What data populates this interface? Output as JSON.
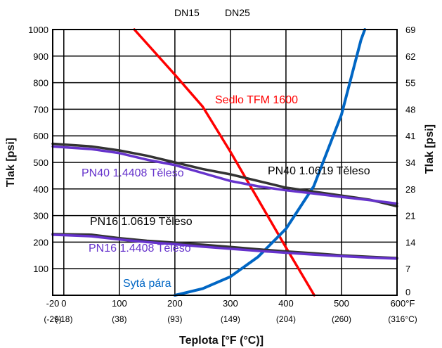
{
  "chart_data": {
    "type": "line",
    "top_labels": [
      "DN15",
      "DN25"
    ],
    "xlabel": "Teplota [°F (°C)]",
    "ylabel_left": "Tlak [psi]",
    "ylabel_right": "Tlak [psi]",
    "xlim": [
      -20,
      600
    ],
    "ylim": [
      0,
      1000
    ],
    "x_ticks": [
      {
        "v": -20,
        "label": "-20",
        "sub": "(-29)"
      },
      {
        "v": 0,
        "label": "0",
        "sub": "(-18)"
      },
      {
        "v": 100,
        "label": "100",
        "sub": "(38)"
      },
      {
        "v": 200,
        "label": "200",
        "sub": "(93)"
      },
      {
        "v": 300,
        "label": "300",
        "sub": "(149)"
      },
      {
        "v": 400,
        "label": "400",
        "sub": "(204)"
      },
      {
        "v": 500,
        "label": "500",
        "sub": "(260)"
      },
      {
        "v": 600,
        "label": "600°F",
        "sub": "(316°C)"
      }
    ],
    "y_ticks_left": [
      {
        "v": 100,
        "label": "100"
      },
      {
        "v": 200,
        "label": "200"
      },
      {
        "v": 300,
        "label": "300"
      },
      {
        "v": 400,
        "label": "400"
      },
      {
        "v": 500,
        "label": "500"
      },
      {
        "v": 600,
        "label": "600"
      },
      {
        "v": 700,
        "label": "700"
      },
      {
        "v": 800,
        "label": "800"
      },
      {
        "v": 900,
        "label": "900"
      },
      {
        "v": 1000,
        "label": "1000"
      }
    ],
    "y_ticks_right": [
      {
        "v": 0,
        "label": "0"
      },
      {
        "v": 100,
        "label": "7"
      },
      {
        "v": 200,
        "label": "14"
      },
      {
        "v": 300,
        "label": "21"
      },
      {
        "v": 400,
        "label": "28"
      },
      {
        "v": 500,
        "label": "34"
      },
      {
        "v": 600,
        "label": "41"
      },
      {
        "v": 700,
        "label": "48"
      },
      {
        "v": 800,
        "label": "55"
      },
      {
        "v": 900,
        "label": "62"
      },
      {
        "v": 1000,
        "label": "69"
      }
    ],
    "grid": true,
    "series": [
      {
        "name": "Sedlo TFM 1600",
        "color": "#ff0000",
        "x": [
          127,
          200,
          250,
          300,
          350,
          400,
          451
        ],
        "y": [
          1000,
          830,
          710,
          540,
          360,
          180,
          0
        ]
      },
      {
        "name": "Sytá pára",
        "color": "#0066c4",
        "x": [
          200,
          250,
          300,
          350,
          400,
          450,
          500,
          520,
          535,
          542
        ],
        "y": [
          0,
          25,
          70,
          145,
          250,
          410,
          680,
          840,
          960,
          1000
        ]
      },
      {
        "name": "PN40 1.0619 Těleso",
        "color": "#333333",
        "x": [
          -20,
          50,
          100,
          150,
          200,
          250,
          300,
          350,
          400,
          450,
          500,
          550,
          600
        ],
        "y": [
          570,
          560,
          545,
          525,
          500,
          475,
          455,
          430,
          405,
          390,
          375,
          360,
          335
        ]
      },
      {
        "name": "PN40 1.4408 Těleso",
        "color": "#6633cc",
        "x": [
          -20,
          50,
          100,
          150,
          200,
          250,
          300,
          350,
          400,
          450,
          500,
          550,
          600
        ],
        "y": [
          560,
          550,
          535,
          510,
          490,
          460,
          430,
          410,
          395,
          383,
          370,
          358,
          345
        ]
      },
      {
        "name": "PN16 1.0619 Těleso",
        "color": "#333333",
        "x": [
          -20,
          50,
          100,
          150,
          200,
          250,
          300,
          350,
          400,
          450,
          500,
          550,
          600
        ],
        "y": [
          230,
          228,
          215,
          205,
          198,
          190,
          182,
          173,
          165,
          158,
          150,
          145,
          140
        ]
      },
      {
        "name": "PN16 1.4408 Těleso",
        "color": "#6633cc",
        "x": [
          -20,
          50,
          100,
          150,
          200,
          250,
          300,
          350,
          400,
          450,
          500,
          550,
          600
        ],
        "y": [
          228,
          222,
          210,
          200,
          192,
          183,
          175,
          167,
          160,
          153,
          147,
          142,
          138
        ]
      }
    ],
    "labels": [
      {
        "text": "Sedlo TFM 1600",
        "color": "#ff0000"
      },
      {
        "text": "Sytá pára",
        "color": "#0066c4"
      },
      {
        "text": "PN40 1.0619 Těleso",
        "color": "#000000"
      },
      {
        "text": "PN40 1.4408 Těleso",
        "color": "#6633cc"
      },
      {
        "text": "PN16 1.0619 Těleso",
        "color": "#000000"
      },
      {
        "text": "PN16 1.4408 Těleso",
        "color": "#6633cc"
      }
    ]
  }
}
